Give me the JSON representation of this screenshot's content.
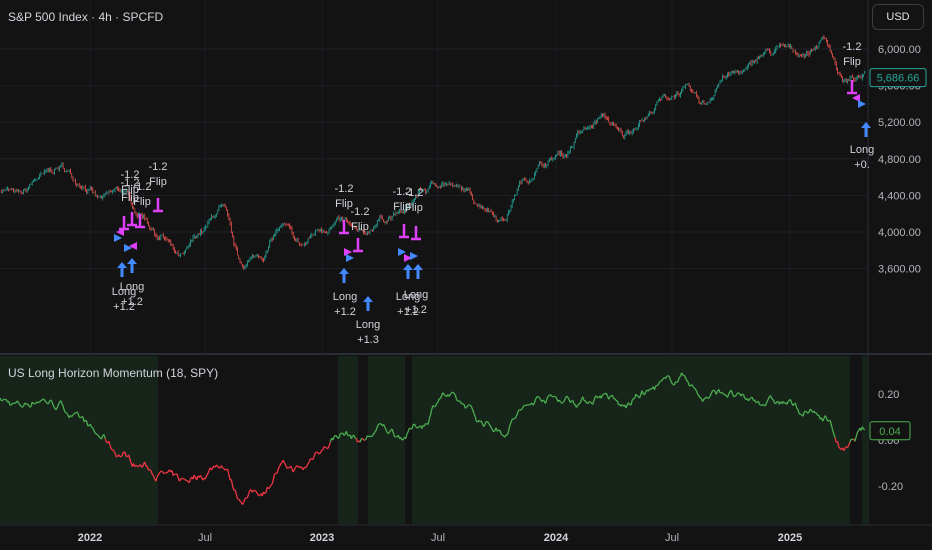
{
  "header": {
    "title": "S&P 500 Index · 4h · SPCFD",
    "currency_label": "USD"
  },
  "indicator": {
    "title": "US Long Horizon Momentum (18, SPY)",
    "current_value_label": "0.04"
  },
  "price_axis": {
    "labels": [
      "6,000.00",
      "5,600.00",
      "5,200.00",
      "4,800.00",
      "4,400.00",
      "4,000.00",
      "3,600.00"
    ],
    "values": [
      6000,
      5600,
      5200,
      4800,
      4400,
      4000,
      3600
    ],
    "current_price_label": "5,686.66",
    "current_price": 5686.66
  },
  "indicator_axis": {
    "labels": [
      "0.20",
      "0.00",
      "-0.20"
    ],
    "values": [
      0.2,
      0.0,
      -0.2
    ]
  },
  "time_axis": {
    "labels": [
      "2022",
      "Jul",
      "2023",
      "Jul",
      "2024",
      "Jul",
      "2025"
    ],
    "bold": [
      true,
      false,
      true,
      false,
      true,
      false,
      true
    ]
  },
  "signals": {
    "flip_labels": [
      "-1.2\nFlip",
      "-1.2\nFlip",
      "-1.2\nFlip",
      "-1.2\nFlip",
      "-1.2\nFlip",
      "-1.2\nFlip",
      "-1.2\nFlip",
      "-1.2\nFlip"
    ],
    "long_labels": [
      "Long\n+1.2",
      "Long\n+1.2",
      "Long\n+1.2",
      "Long\n+1.3",
      "Long\n+1.2",
      "Long\n+1.2",
      "Long\n+0."
    ]
  },
  "colors": {
    "background": "#131313",
    "candle_up": "#26a69a",
    "candle_down": "#ef5350",
    "momentum_positive": "#4caf50",
    "momentum_negative": "#f23645",
    "flip_arrow": "#e040fb",
    "long_arrow": "#448aff",
    "price_tag": "#26a69a",
    "momentum_tag": "#4caf50"
  },
  "chart_data": {
    "type": "line",
    "title": "S&P 500 Index · 4h · SPCFD",
    "x_range": [
      "2021-09",
      "2025-04"
    ],
    "series": [
      {
        "name": "S&P 500 Index",
        "x": [
          "2021-09",
          "2021-10",
          "2021-11",
          "2021-12",
          "2022-01",
          "2022-02",
          "2022-03",
          "2022-04",
          "2022-05",
          "2022-06",
          "2022-07",
          "2022-08",
          "2022-09",
          "2022-10",
          "2022-11",
          "2022-12",
          "2023-01",
          "2023-02",
          "2023-03",
          "2023-04",
          "2023-05",
          "2023-06",
          "2023-07",
          "2023-08",
          "2023-09",
          "2023-10",
          "2023-11",
          "2023-12",
          "2024-01",
          "2024-02",
          "2024-03",
          "2024-04",
          "2024-05",
          "2024-06",
          "2024-07",
          "2024-08",
          "2024-09",
          "2024-10",
          "2024-11",
          "2024-12",
          "2025-01",
          "2025-02",
          "2025-03",
          "2025-04"
        ],
        "values": [
          4480,
          4400,
          4600,
          4700,
          4550,
          4350,
          4450,
          4200,
          3950,
          3700,
          4000,
          4250,
          3650,
          3750,
          4050,
          3850,
          4050,
          4100,
          3950,
          4150,
          4200,
          4450,
          4550,
          4450,
          4300,
          4150,
          4550,
          4750,
          4850,
          5100,
          5250,
          5050,
          5250,
          5450,
          5550,
          5400,
          5700,
          5750,
          5950,
          6000,
          5950,
          6100,
          5650,
          5686.66
        ]
      }
    ],
    "ylim": [
      3500,
      6150
    ],
    "indicator": {
      "name": "US Long Horizon Momentum (18, SPY)",
      "values": [
        0.17,
        0.15,
        0.18,
        0.15,
        0.08,
        0.01,
        -0.06,
        -0.11,
        -0.15,
        -0.18,
        -0.15,
        -0.1,
        -0.25,
        -0.22,
        -0.12,
        -0.13,
        -0.03,
        0.03,
        0.0,
        0.05,
        0.02,
        0.07,
        0.2,
        0.15,
        0.08,
        0.04,
        0.13,
        0.19,
        0.18,
        0.17,
        0.2,
        0.14,
        0.2,
        0.24,
        0.28,
        0.18,
        0.21,
        0.17,
        0.17,
        0.16,
        0.12,
        0.1,
        -0.05,
        0.04
      ],
      "ylim": [
        -0.33,
        0.32
      ]
    }
  }
}
